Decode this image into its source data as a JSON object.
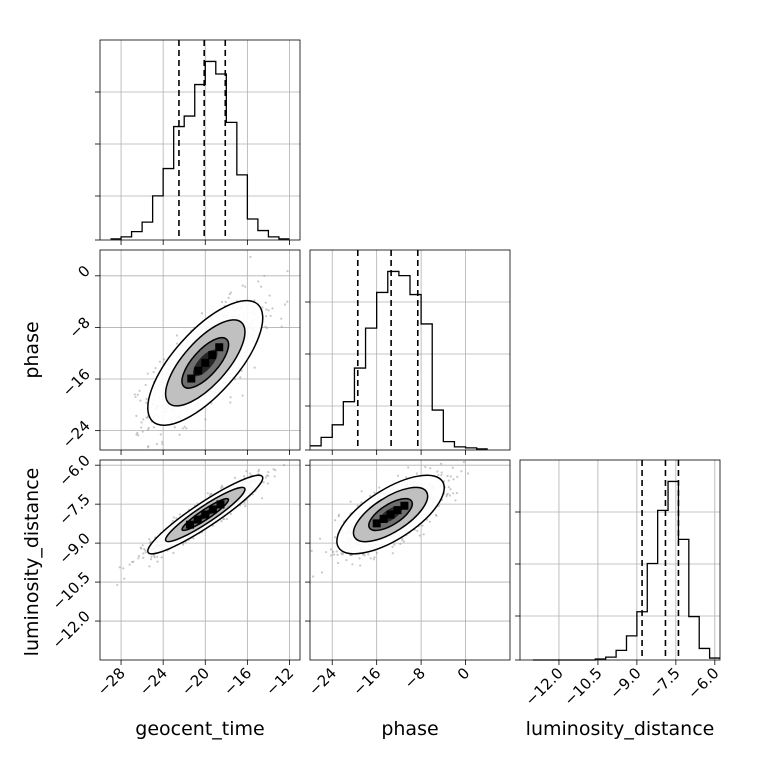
{
  "figure": {
    "type": "corner-plot",
    "colors": {
      "line": "#000000",
      "grid": "#b0b0b0",
      "scatter": "#9a9a9a"
    }
  },
  "chart_data": [
    {
      "type": "histogram",
      "panel": "geocent_time",
      "xlim": [
        -30,
        -11
      ],
      "bins": [
        -29.0,
        -28.0,
        -27.0,
        -26.0,
        -25.0,
        -24.0,
        -23.0,
        -22.0,
        -21.0,
        -20.0,
        -19.0,
        -18.0,
        -17.0,
        -16.0,
        -15.0,
        -14.0,
        -13.0,
        -12.0
      ],
      "counts": [
        1,
        3,
        8,
        17,
        42,
        68,
        108,
        118,
        148,
        170,
        158,
        112,
        62,
        20,
        9,
        3,
        1
      ],
      "quantiles": [
        -22.5,
        -20.1,
        -18.1
      ],
      "grid": true
    },
    {
      "type": "histogram",
      "panel": "phase",
      "xlim": [
        -28,
        8
      ],
      "bins": [
        -28,
        -26,
        -24,
        -22,
        -20,
        -18,
        -16,
        -14,
        -12,
        -10,
        -8,
        -6,
        -4,
        -2,
        0,
        2,
        4
      ],
      "counts": [
        4,
        12,
        24,
        46,
        78,
        116,
        150,
        170,
        166,
        148,
        120,
        38,
        8,
        3,
        2,
        1
      ],
      "quantiles": [
        -19.4,
        -13.4,
        -8.6
      ],
      "grid": true
    },
    {
      "type": "histogram",
      "panel": "luminosity_distance",
      "xlim": [
        -13.5,
        -5.8
      ],
      "bins": [
        -13.0,
        -12.6,
        -12.2,
        -11.8,
        -11.4,
        -11.0,
        -10.6,
        -10.2,
        -9.8,
        -9.4,
        -9.0,
        -8.6,
        -8.2,
        -7.8,
        -7.4,
        -7.0,
        -6.6,
        -6.2,
        -5.8
      ],
      "counts": [
        0,
        0,
        0,
        0,
        0,
        0,
        1,
        3,
        10,
        25,
        50,
        100,
        155,
        185,
        125,
        45,
        12,
        2
      ],
      "quantiles": [
        -8.8,
        -7.9,
        -7.4
      ],
      "grid": true
    },
    {
      "type": "scatter-contour",
      "x": "geocent_time",
      "y": "phase",
      "xlim": [
        -30,
        -11
      ],
      "ylim": [
        -27,
        4
      ],
      "x_ticks": [
        -28,
        -24,
        -20,
        -16,
        -12
      ],
      "y_ticks": [
        0,
        -8,
        -16,
        -24
      ],
      "center": [
        -20.0,
        -13.5
      ],
      "sd": [
        2.6,
        4.6
      ],
      "corr": 0.72,
      "grid": true
    },
    {
      "type": "scatter-contour",
      "x": "geocent_time",
      "y": "luminosity_distance",
      "xlim": [
        -30,
        -11
      ],
      "ylim": [
        -13.5,
        -5.8
      ],
      "x_ticks": [
        -28,
        -24,
        -20,
        -16,
        -12
      ],
      "y_ticks": [
        -6.0,
        -7.5,
        -9.0,
        -10.5,
        -12.0
      ],
      "center": [
        -20.0,
        -7.9
      ],
      "sd": [
        2.6,
        0.72
      ],
      "corr": 0.93,
      "grid": true
    },
    {
      "type": "scatter-contour",
      "x": "phase",
      "y": "luminosity_distance",
      "xlim": [
        -28,
        8
      ],
      "ylim": [
        -13.5,
        -5.8
      ],
      "x_ticks": [
        -24,
        -16,
        -8,
        0
      ],
      "y_ticks": [
        -6.0,
        -7.5,
        -9.0,
        -10.5,
        -12.0
      ],
      "center": [
        -13.5,
        -7.9
      ],
      "sd": [
        4.6,
        0.72
      ],
      "corr": 0.68,
      "grid": true
    }
  ],
  "labels": {
    "x": [
      "geocent_time",
      "phase",
      "luminosity_distance"
    ],
    "y": [
      "phase",
      "luminosity_distance"
    ]
  },
  "tick_labels": {
    "geocent_time": [
      "−28",
      "−24",
      "−20",
      "−16",
      "−12"
    ],
    "phase_x": [
      "−24",
      "−16",
      "−8",
      "0"
    ],
    "phase_y": [
      "0",
      "−8",
      "−16",
      "−24"
    ],
    "luminosity_distance_y": [
      "−6.0",
      "−7.5",
      "−9.0",
      "−10.5",
      "−12.0"
    ],
    "luminosity_distance_x": [
      "−12.0",
      "−10.5",
      "−9.0",
      "−7.5",
      "−6.0"
    ]
  }
}
